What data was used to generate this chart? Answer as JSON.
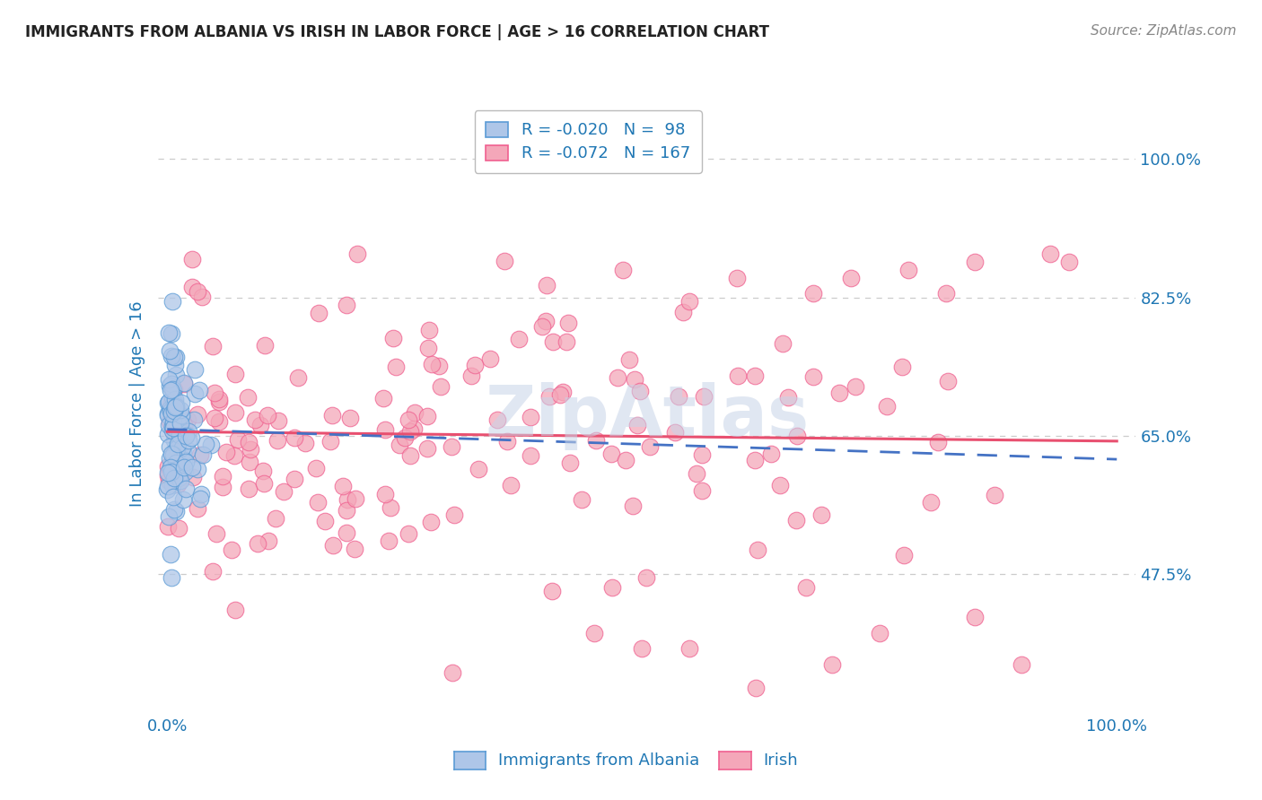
{
  "title": "IMMIGRANTS FROM ALBANIA VS IRISH IN LABOR FORCE | AGE > 16 CORRELATION CHART",
  "source": "Source: ZipAtlas.com",
  "ylabel": "In Labor Force | Age > 16",
  "yticks": [
    0.475,
    0.65,
    0.825,
    1.0
  ],
  "ytick_labels": [
    "47.5%",
    "65.0%",
    "82.5%",
    "100.0%"
  ],
  "xlim": [
    -0.01,
    1.02
  ],
  "ylim": [
    0.3,
    1.08
  ],
  "legend_r_albania": "-0.020",
  "legend_n_albania": "98",
  "legend_r_irish": "-0.072",
  "legend_n_irish": "167",
  "albania_color": "#aec6e8",
  "irish_color": "#f4a7b9",
  "albania_edge": "#5b9bd5",
  "irish_edge": "#f06090",
  "trendline_albania_color": "#4472c4",
  "trendline_irish_color": "#e85070",
  "watermark": "ZipAtlas",
  "watermark_color": "#c8d4e8",
  "background_color": "#ffffff",
  "grid_color": "#cccccc",
  "title_color": "#222222",
  "axis_label_color": "#1f77b4",
  "tick_label_color": "#1f77b4",
  "irish_intercept": 0.655,
  "irish_slope": -0.012,
  "alb_intercept": 0.658,
  "alb_slope": -0.038
}
